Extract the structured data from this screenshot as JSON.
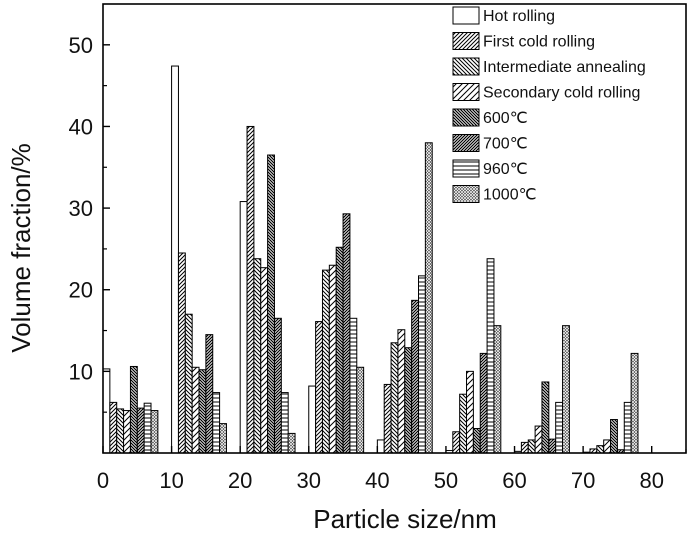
{
  "chart_data": {
    "type": "bar",
    "xlabel": "Particle size/nm",
    "ylabel": "Volume fraction/%",
    "xlim": [
      0,
      85
    ],
    "ylim": [
      0,
      55
    ],
    "xticks": [
      0,
      10,
      20,
      30,
      40,
      50,
      60,
      70,
      80
    ],
    "yticks": [
      10,
      20,
      30,
      40,
      50
    ],
    "legend_position": "top-right",
    "categories": [
      "0-10 nm",
      "10-20 nm",
      "20-30 nm",
      "30-40 nm",
      "40-50 nm",
      "50-60 nm",
      "60-70 nm",
      "70-80 nm"
    ],
    "series": [
      {
        "name": "Hot rolling",
        "pattern": "blank",
        "values": [
          10.3,
          47.4,
          30.8,
          8.2,
          1.6,
          0.3,
          0.2,
          0.1
        ]
      },
      {
        "name": "First cold rolling",
        "pattern": "diag-right",
        "values": [
          6.2,
          24.5,
          40.0,
          16.1,
          8.4,
          2.6,
          1.3,
          0.5
        ]
      },
      {
        "name": "Intermediate annealing",
        "pattern": "diag-left",
        "values": [
          5.4,
          17.0,
          23.8,
          22.4,
          13.5,
          7.2,
          1.6,
          0.9
        ]
      },
      {
        "name": "Secondary cold rolling",
        "pattern": "diag-right-sparse",
        "values": [
          5.2,
          10.5,
          22.7,
          23.0,
          15.1,
          10.0,
          3.3,
          1.6
        ]
      },
      {
        "name": "600℃",
        "pattern": "diag-left-dense",
        "values": [
          10.6,
          10.2,
          36.5,
          25.2,
          12.9,
          3.0,
          8.7,
          4.1
        ]
      },
      {
        "name": "700℃",
        "pattern": "diag-right-dense",
        "values": [
          5.5,
          14.5,
          16.5,
          29.3,
          18.7,
          12.2,
          1.7,
          0.4
        ]
      },
      {
        "name": "960℃",
        "pattern": "horizontal",
        "values": [
          6.1,
          7.4,
          7.4,
          16.5,
          21.7,
          23.8,
          6.2,
          6.2
        ]
      },
      {
        "name": "1000℃",
        "pattern": "crosshatch",
        "values": [
          5.2,
          3.6,
          2.4,
          10.5,
          38.0,
          15.6,
          15.6,
          12.2
        ]
      }
    ]
  }
}
